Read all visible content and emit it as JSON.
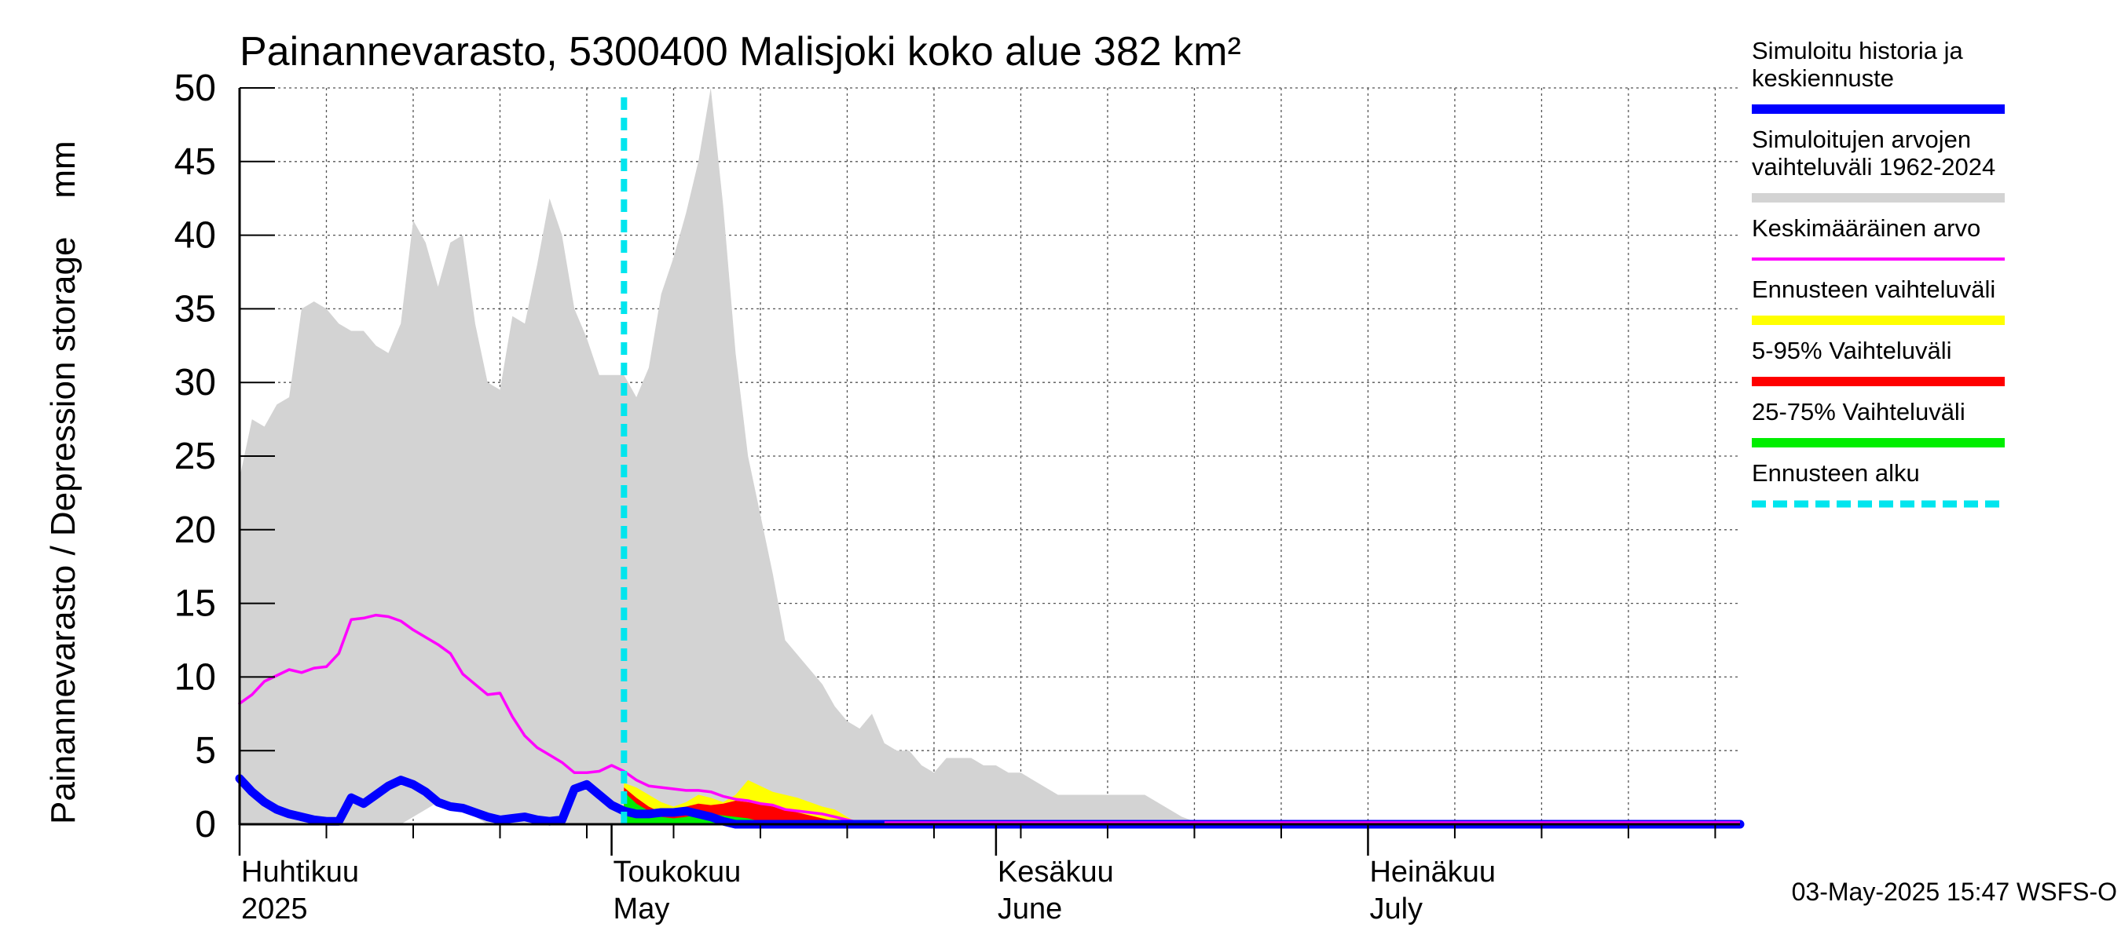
{
  "colors": {
    "history": "#0000ff",
    "range": "#d3d3d3",
    "mean": "#ff00ff",
    "forecast_range": "#ffff00",
    "p5_95": "#ff0000",
    "p25_75": "#00ee00",
    "forecast_start": "#00e5ee"
  },
  "chart_data": {
    "type": "area",
    "title": "Painannevarasto, 5300400 Malisjoki koko alue 382 km²",
    "ylabel": "Painannevarasto / Depression storage    mm",
    "ylim": [
      0,
      50
    ],
    "yticks": [
      "0",
      "5",
      "10",
      "15",
      "20",
      "25",
      "30",
      "35",
      "40",
      "45",
      "50"
    ],
    "x_start": "2025-04-01",
    "x_end": "2025-07-31",
    "month_labels": [
      {
        "fi": "Huhtikuu",
        "en": "2025",
        "date": "2025-04-01"
      },
      {
        "fi": "Toukokuu",
        "en": "May",
        "date": "2025-05-01"
      },
      {
        "fi": "Kesäkuu",
        "en": "June",
        "date": "2025-06-01"
      },
      {
        "fi": "Heinäkuu",
        "en": "July",
        "date": "2025-07-01"
      }
    ],
    "forecast_start": "2025-05-02",
    "timestamp": "03-May-2025 15:47 WSFS-O",
    "legend": [
      {
        "label": "Simuloitu historia ja\nkeskiennuste",
        "color": "#0000ff",
        "style": "line"
      },
      {
        "label": "Simuloitujen arvojen\nvaihteluväli 1962-2024",
        "color": "#d3d3d3",
        "style": "band"
      },
      {
        "label": "Keskimääräinen arvo",
        "color": "#ff00ff",
        "style": "thin"
      },
      {
        "label": "Ennusteen vaihteluväli",
        "color": "#ffff00",
        "style": "band"
      },
      {
        "label": "5-95% Vaihteluväli",
        "color": "#ff0000",
        "style": "band"
      },
      {
        "label": "25-75% Vaihteluväli",
        "color": "#00ee00",
        "style": "band"
      },
      {
        "label": "Ennusteen alku",
        "color": "#00e5ee",
        "style": "dashed"
      }
    ],
    "series": [
      {
        "name": "Simuloitujen arvojen vaihteluväli 1962-2024",
        "kind": "range",
        "x": [
          "2025-04-01",
          "2025-04-02",
          "2025-04-03",
          "2025-04-04",
          "2025-04-05",
          "2025-04-06",
          "2025-04-07",
          "2025-04-08",
          "2025-04-09",
          "2025-04-10",
          "2025-04-11",
          "2025-04-12",
          "2025-04-13",
          "2025-04-14",
          "2025-04-15",
          "2025-04-16",
          "2025-04-17",
          "2025-04-18",
          "2025-04-19",
          "2025-04-20",
          "2025-04-21",
          "2025-04-22",
          "2025-04-23",
          "2025-04-24",
          "2025-04-25",
          "2025-04-26",
          "2025-04-27",
          "2025-04-28",
          "2025-04-29",
          "2025-04-30",
          "2025-05-01",
          "2025-05-02",
          "2025-05-03",
          "2025-05-04",
          "2025-05-05",
          "2025-05-06",
          "2025-05-07",
          "2025-05-08",
          "2025-05-09",
          "2025-05-10",
          "2025-05-11",
          "2025-05-12",
          "2025-05-13",
          "2025-05-14",
          "2025-05-15",
          "2025-05-16",
          "2025-05-17",
          "2025-05-18",
          "2025-05-19",
          "2025-05-20",
          "2025-05-21",
          "2025-05-22",
          "2025-05-23",
          "2025-05-24",
          "2025-05-25",
          "2025-05-26",
          "2025-05-27",
          "2025-05-28",
          "2025-05-29",
          "2025-05-30",
          "2025-05-31",
          "2025-06-01",
          "2025-06-02",
          "2025-06-03",
          "2025-06-04",
          "2025-06-05",
          "2025-06-06",
          "2025-06-07",
          "2025-06-08",
          "2025-06-09",
          "2025-06-10",
          "2025-06-11",
          "2025-06-12",
          "2025-06-13",
          "2025-06-14",
          "2025-06-15",
          "2025-06-16",
          "2025-06-17",
          "2025-06-18",
          "2025-06-19",
          "2025-06-20",
          "2025-06-21",
          "2025-06-22",
          "2025-06-23",
          "2025-06-24",
          "2025-06-25",
          "2025-07-31"
        ],
        "upper": [
          23.5,
          27.5,
          27,
          28.5,
          29,
          35,
          35.5,
          35,
          34,
          33.5,
          33.5,
          32.5,
          32,
          34,
          41,
          39.5,
          36.5,
          39.5,
          40,
          34,
          30,
          29.5,
          34.5,
          34,
          38,
          42.5,
          40,
          35,
          33,
          30.5,
          30.5,
          30.5,
          29,
          31,
          36,
          38.5,
          41.5,
          45,
          50,
          42,
          32,
          25,
          21,
          17,
          12.5,
          11.5,
          10.5,
          9.5,
          8,
          7,
          6.5,
          7.5,
          5.5,
          5,
          5,
          4,
          3.5,
          4.5,
          4.5,
          4.5,
          4,
          4,
          3.5,
          3.5,
          3,
          2.5,
          2,
          2,
          2,
          2,
          2,
          2,
          2,
          2,
          1.5,
          1,
          0.5,
          0.2,
          0,
          0,
          0,
          0,
          0,
          0,
          0,
          0,
          0
        ],
        "lower": [
          0,
          0,
          0,
          0,
          0,
          0,
          0,
          0,
          0,
          0,
          0,
          0,
          0,
          0,
          0.5,
          1,
          1.5,
          1.5,
          1,
          0.5,
          0,
          0,
          0,
          0,
          0,
          0,
          0,
          0,
          0,
          0,
          0,
          0,
          0,
          0,
          0,
          0,
          0,
          0,
          0,
          0,
          0,
          0,
          0,
          0,
          0,
          0,
          0,
          0,
          0,
          0,
          0,
          0,
          0,
          0,
          0,
          0,
          0,
          0,
          0,
          0,
          0,
          0,
          0,
          0,
          0,
          0,
          0,
          0,
          0,
          0,
          0,
          0,
          0,
          0,
          0,
          0,
          0,
          0,
          0,
          0,
          0,
          0,
          0,
          0,
          0,
          0,
          0
        ]
      },
      {
        "name": "Ennusteen vaihteluväli",
        "kind": "range",
        "x": [
          "2025-05-02",
          "2025-05-03",
          "2025-05-04",
          "2025-05-05",
          "2025-05-06",
          "2025-05-07",
          "2025-05-08",
          "2025-05-09",
          "2025-05-10",
          "2025-05-11",
          "2025-05-12",
          "2025-05-13",
          "2025-05-14",
          "2025-05-15",
          "2025-05-16",
          "2025-05-17",
          "2025-05-18",
          "2025-05-19",
          "2025-05-20",
          "2025-05-21"
        ],
        "upper": [
          2.8,
          2.5,
          2,
          1.5,
          1.2,
          1.5,
          2,
          1.8,
          1.5,
          2,
          3,
          2.6,
          2.2,
          2,
          1.8,
          1.5,
          1.2,
          1,
          0.5,
          0
        ],
        "lower": [
          0,
          0,
          0,
          0,
          0,
          0,
          0,
          0,
          0,
          0,
          0,
          0,
          0,
          0,
          0,
          0,
          0,
          0,
          0,
          0
        ]
      },
      {
        "name": "5-95% Vaihteluväli",
        "kind": "range",
        "x": [
          "2025-05-02",
          "2025-05-03",
          "2025-05-04",
          "2025-05-05",
          "2025-05-06",
          "2025-05-07",
          "2025-05-08",
          "2025-05-09",
          "2025-05-10",
          "2025-05-11",
          "2025-05-12",
          "2025-05-13",
          "2025-05-14",
          "2025-05-15",
          "2025-05-16",
          "2025-05-17",
          "2025-05-18",
          "2025-05-19",
          "2025-05-20",
          "2025-05-21"
        ],
        "upper": [
          2.5,
          1.8,
          1.2,
          0.8,
          0.8,
          1.2,
          1.4,
          1.3,
          1.4,
          1.6,
          1.5,
          1.4,
          1.2,
          1,
          0.8,
          0.6,
          0.4,
          0.2,
          0.1,
          0
        ],
        "lower": [
          0,
          0,
          0,
          0,
          0,
          0,
          0,
          0,
          0,
          0,
          0,
          0,
          0,
          0,
          0,
          0,
          0,
          0,
          0,
          0
        ]
      },
      {
        "name": "25-75% Vaihteluväli",
        "kind": "range",
        "x": [
          "2025-05-02",
          "2025-05-03",
          "2025-05-04",
          "2025-05-05",
          "2025-05-06",
          "2025-05-07",
          "2025-05-08",
          "2025-05-09",
          "2025-05-10",
          "2025-05-11",
          "2025-05-12",
          "2025-05-13",
          "2025-05-14",
          "2025-05-15",
          "2025-05-16",
          "2025-05-17",
          "2025-05-18",
          "2025-05-19",
          "2025-05-20",
          "2025-05-21"
        ],
        "upper": [
          2.2,
          1.4,
          0.9,
          0.5,
          0.4,
          0.5,
          0.7,
          0.7,
          0.6,
          0.5,
          0.4,
          0.2,
          0.1,
          0.1,
          0.1,
          0,
          0,
          0,
          0,
          0
        ],
        "lower": [
          0,
          0,
          0,
          0,
          0,
          0,
          0,
          0,
          0,
          0,
          0,
          0,
          0,
          0,
          0,
          0,
          0,
          0,
          0,
          0
        ]
      },
      {
        "name": "Keskimääräinen arvo",
        "kind": "line",
        "x": [
          "2025-04-01",
          "2025-04-02",
          "2025-04-03",
          "2025-04-04",
          "2025-04-05",
          "2025-04-06",
          "2025-04-07",
          "2025-04-08",
          "2025-04-09",
          "2025-04-10",
          "2025-04-11",
          "2025-04-12",
          "2025-04-13",
          "2025-04-14",
          "2025-04-15",
          "2025-04-16",
          "2025-04-17",
          "2025-04-18",
          "2025-04-19",
          "2025-04-20",
          "2025-04-21",
          "2025-04-22",
          "2025-04-23",
          "2025-04-24",
          "2025-04-25",
          "2025-04-26",
          "2025-04-27",
          "2025-04-28",
          "2025-04-29",
          "2025-04-30",
          "2025-05-01",
          "2025-05-02",
          "2025-05-03",
          "2025-05-04",
          "2025-05-05",
          "2025-05-06",
          "2025-05-07",
          "2025-05-08",
          "2025-05-09",
          "2025-05-10",
          "2025-05-11",
          "2025-05-12",
          "2025-05-13",
          "2025-05-14",
          "2025-05-15",
          "2025-05-16",
          "2025-05-17",
          "2025-05-18",
          "2025-05-19",
          "2025-05-20",
          "2025-05-21",
          "2025-05-22",
          "2025-05-23",
          "2025-05-24",
          "2025-05-25",
          "2025-05-26",
          "2025-07-31"
        ],
        "y": [
          8.2,
          8.8,
          9.7,
          10.1,
          10.5,
          10.3,
          10.6,
          10.7,
          11.6,
          13.9,
          14.0,
          14.2,
          14.1,
          13.8,
          13.2,
          12.7,
          12.2,
          11.6,
          10.2,
          9.5,
          8.8,
          8.9,
          7.3,
          6.0,
          5.2,
          4.7,
          4.2,
          3.5,
          3.5,
          3.6,
          4.0,
          3.6,
          3.0,
          2.6,
          2.5,
          2.4,
          2.3,
          2.3,
          2.2,
          1.9,
          1.7,
          1.6,
          1.4,
          1.3,
          1.0,
          0.9,
          0.8,
          0.7,
          0.5,
          0.3,
          0.1,
          0.05,
          0.0,
          0.0,
          0.0,
          0.0,
          0.0
        ]
      },
      {
        "name": "Simuloitu historia ja keskiennuste",
        "kind": "line",
        "x": [
          "2025-04-01",
          "2025-04-02",
          "2025-04-03",
          "2025-04-04",
          "2025-04-05",
          "2025-04-06",
          "2025-04-07",
          "2025-04-08",
          "2025-04-09",
          "2025-04-10",
          "2025-04-11",
          "2025-04-12",
          "2025-04-13",
          "2025-04-14",
          "2025-04-15",
          "2025-04-16",
          "2025-04-17",
          "2025-04-18",
          "2025-04-19",
          "2025-04-20",
          "2025-04-21",
          "2025-04-22",
          "2025-04-23",
          "2025-04-24",
          "2025-04-25",
          "2025-04-26",
          "2025-04-27",
          "2025-04-28",
          "2025-04-29",
          "2025-04-30",
          "2025-05-01",
          "2025-05-02",
          "2025-05-03",
          "2025-05-04",
          "2025-05-05",
          "2025-05-06",
          "2025-05-07",
          "2025-05-08",
          "2025-05-09",
          "2025-05-10",
          "2025-05-11",
          "2025-05-12",
          "2025-05-13",
          "2025-05-14",
          "2025-05-15",
          "2025-05-16",
          "2025-05-17",
          "2025-05-18",
          "2025-05-19",
          "2025-05-20",
          "2025-05-21",
          "2025-07-31"
        ],
        "y": [
          3.1,
          2.2,
          1.5,
          1.0,
          0.7,
          0.5,
          0.3,
          0.2,
          0.2,
          1.8,
          1.4,
          2.0,
          2.6,
          3.0,
          2.7,
          2.2,
          1.5,
          1.2,
          1.1,
          0.8,
          0.5,
          0.3,
          0.4,
          0.5,
          0.3,
          0.2,
          0.3,
          2.4,
          2.7,
          2.0,
          1.3,
          0.9,
          0.7,
          0.7,
          0.8,
          0.8,
          0.9,
          0.7,
          0.5,
          0.2,
          0.0,
          0.0,
          0.0,
          0.0,
          0.0,
          0.0,
          0.0,
          0.0,
          0.0,
          0.0,
          0.0,
          0.0
        ]
      }
    ]
  }
}
